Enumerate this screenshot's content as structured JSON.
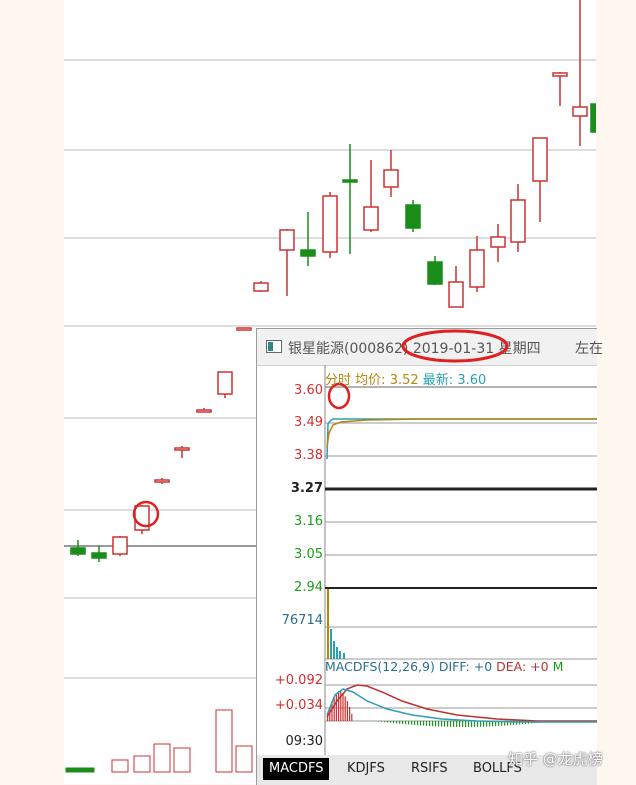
{
  "popup": {
    "title": "银星能源(000862) 2019-01-31 星期四",
    "right_label": "左在",
    "legend": {
      "mode": "分时",
      "avg_label": "均价:",
      "avg_value": "3.52",
      "latest_label": "最新:",
      "latest_value": "3.60"
    },
    "price_ticks": [
      {
        "label": "3.60",
        "color": "#d23030"
      },
      {
        "label": "3.49",
        "color": "#d23030"
      },
      {
        "label": "3.38",
        "color": "#d23030"
      },
      {
        "label": "3.27",
        "color": "#222222"
      },
      {
        "label": "3.16",
        "color": "#1d9a1d"
      },
      {
        "label": "3.05",
        "color": "#1d9a1d"
      },
      {
        "label": "2.94",
        "color": "#1d9a1d"
      }
    ],
    "volume_label": "76714",
    "macd": {
      "name": "MACDFS(12,26,9)",
      "diff": "DIFF: +0",
      "dea": "DEA: +0",
      "m": "M",
      "tick_high": "+0.092",
      "tick_low": "+0.034"
    },
    "time_label": "09:30",
    "tabs": [
      "MACDFS",
      "KDJFS",
      "RSIFS",
      "BOLLFS"
    ],
    "active_tab": "MACDFS"
  },
  "watermark": "知乎 @龙虎榜",
  "colors": {
    "up": "#cc3333",
    "down": "#1a8c1a",
    "annotation": "#e02020",
    "avg_line": "#b8860b",
    "price_line": "#2a9fb5"
  },
  "icons": {
    "window": "window-icon"
  }
}
